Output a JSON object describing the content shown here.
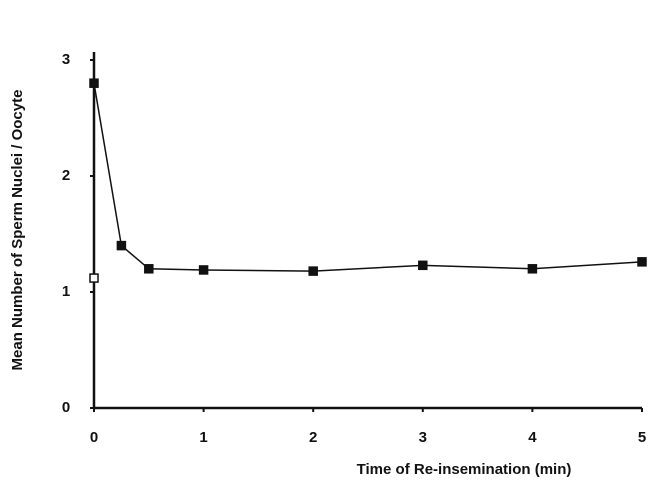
{
  "chart_data": {
    "type": "line",
    "xlabel": "Time of Re-insemination (min)",
    "ylabel": "Mean Number of Sperm Nuclei / Oocyte",
    "series": [
      {
        "color": "#111111",
        "marker": "filled-square",
        "x": [
          0,
          0.25,
          0.5,
          1,
          2,
          3,
          4,
          5
        ],
        "values": [
          2.8,
          1.4,
          1.2,
          1.19,
          1.18,
          1.23,
          1.2,
          1.26
        ]
      },
      {
        "color": "#111111",
        "marker": "open-square",
        "x": [
          0
        ],
        "values": [
          1.12
        ]
      }
    ],
    "xlim": [
      0,
      5
    ],
    "xticks": [
      0,
      1,
      2,
      3,
      4,
      5
    ],
    "ylim": [
      0,
      3
    ],
    "yticks": [
      0,
      1,
      2,
      3
    ]
  }
}
